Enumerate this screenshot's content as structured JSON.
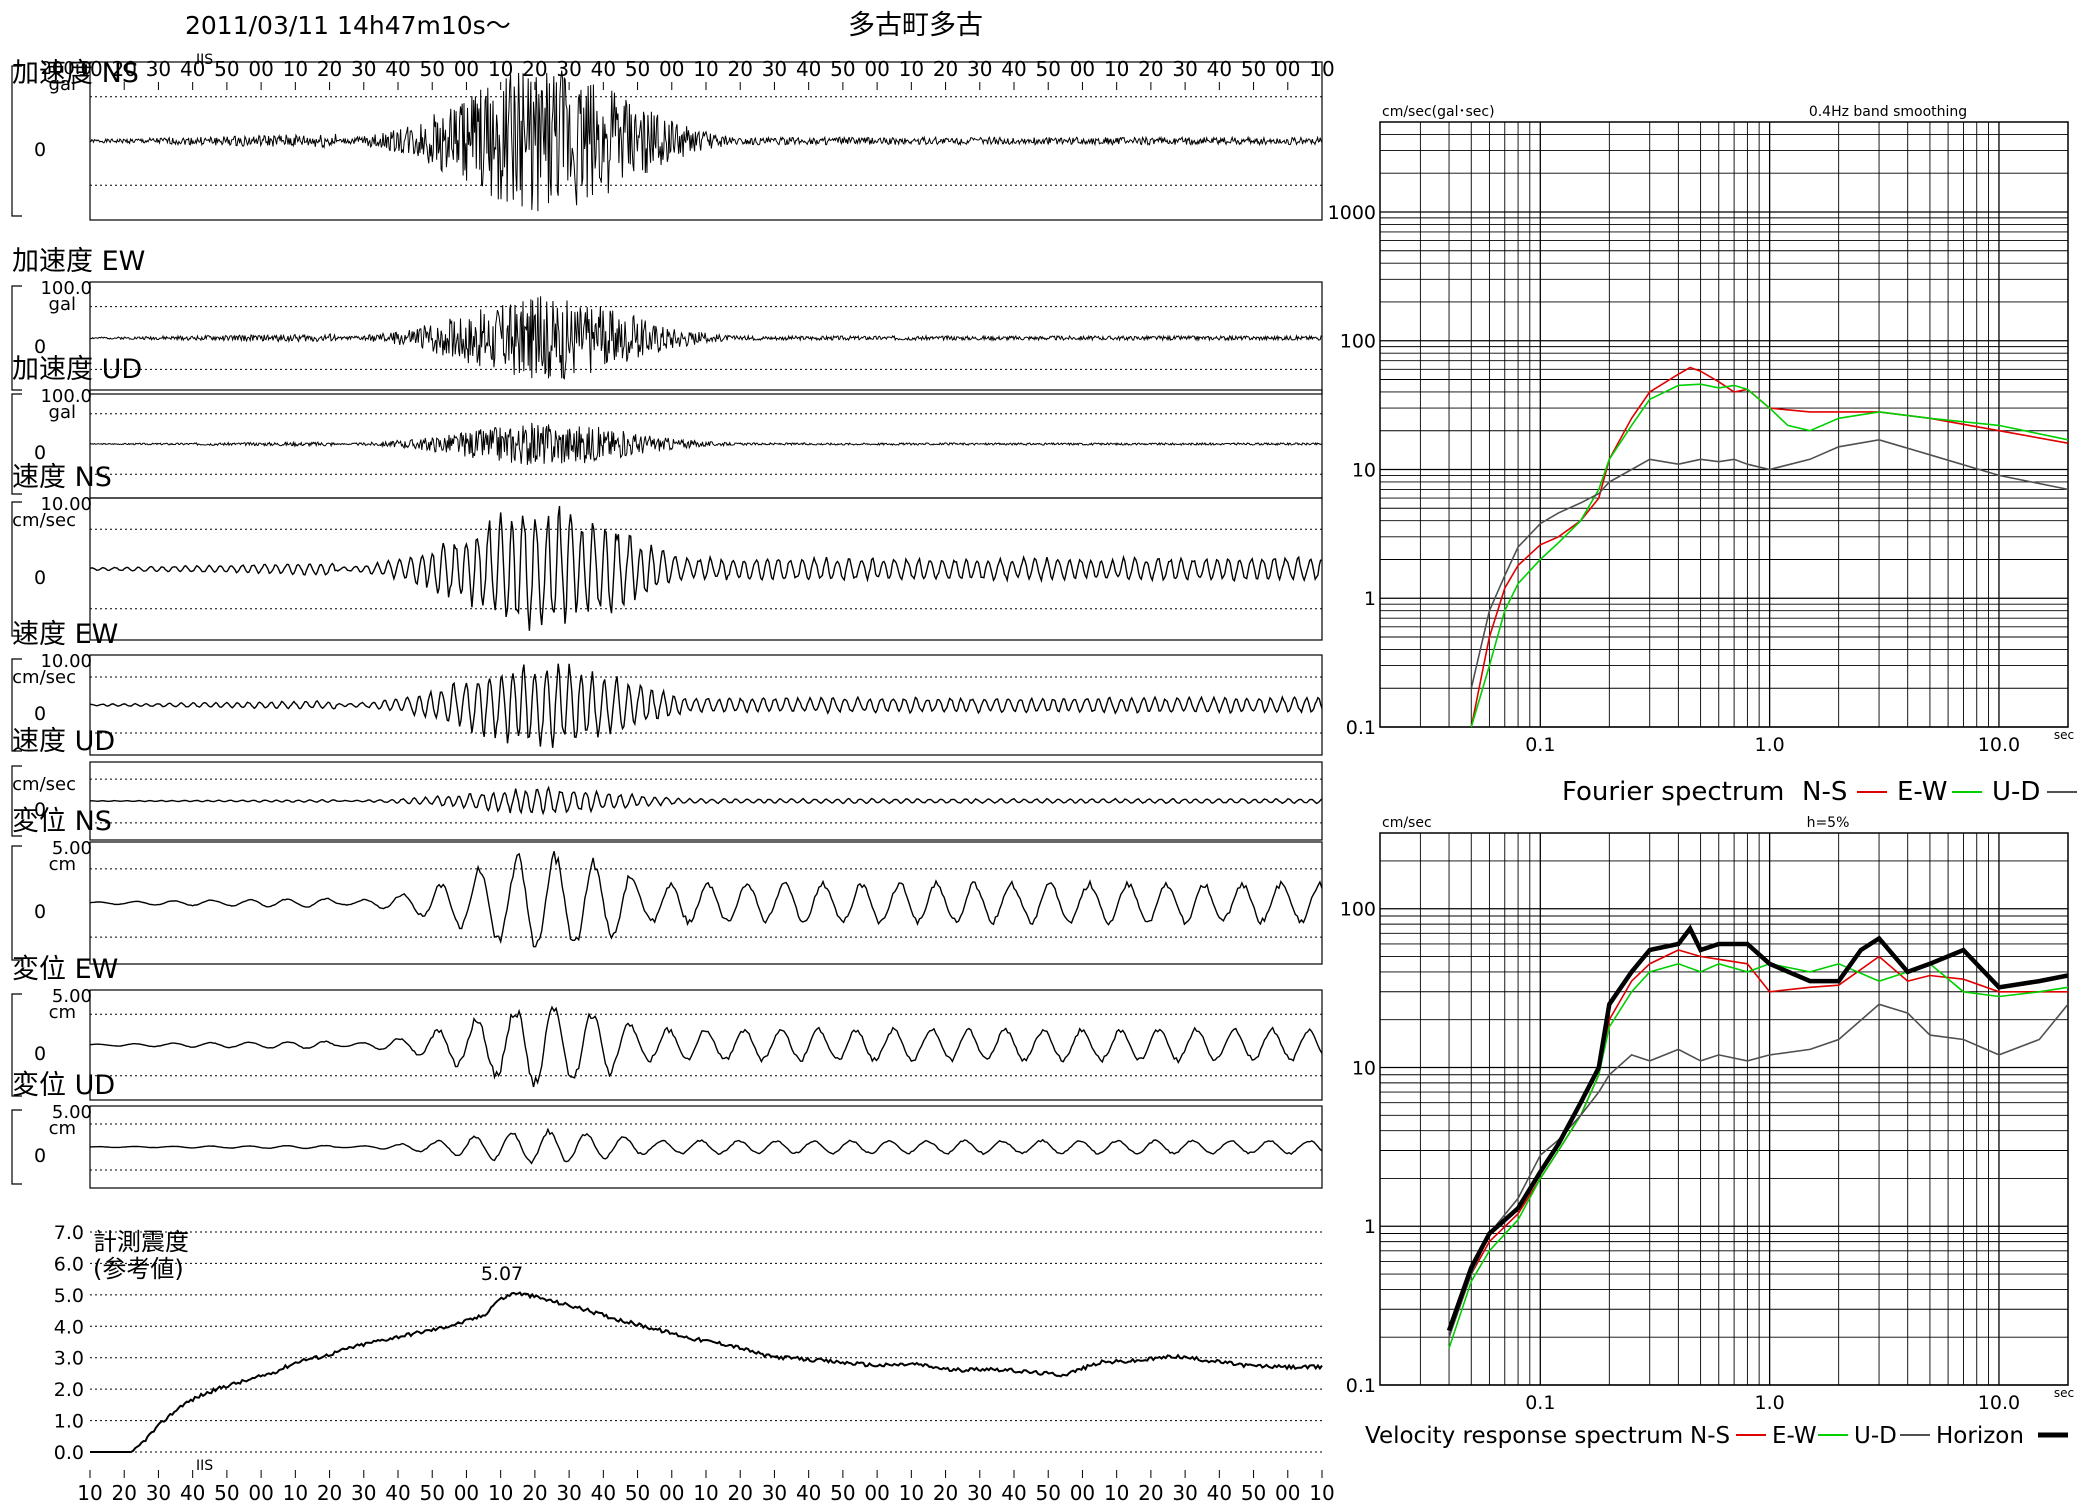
{
  "header": {
    "datetime": "2011/03/11  14h47m10s〜",
    "station": "多古町多古"
  },
  "time_ticks": [
    "10",
    "20",
    "30",
    "40",
    "50",
    "00",
    "10",
    "20",
    "30",
    "40",
    "50",
    "00",
    "10",
    "20",
    "30",
    "40",
    "50",
    "00",
    "10",
    "20",
    "30",
    "40",
    "50",
    "00",
    "10",
    "20",
    "30",
    "40",
    "50",
    "00",
    "10",
    "20",
    "30",
    "40",
    "50",
    "00",
    "10"
  ],
  "trace_marker": "IIS",
  "waveforms": [
    {
      "label": "加速度 NS",
      "scale": "200.0",
      "unit": "gal",
      "zero": "0",
      "amp": 0.95,
      "type": "acc",
      "seed": 1
    },
    {
      "label": "加速度 EW",
      "scale": "100.0",
      "unit": "gal",
      "zero": "0",
      "amp": 0.75,
      "type": "acc",
      "seed": 2
    },
    {
      "label": "加速度 UD",
      "scale": "100.0",
      "unit": "gal",
      "zero": "0",
      "amp": 0.4,
      "type": "acc",
      "seed": 3
    },
    {
      "label": "速度 NS",
      "scale": "10.00",
      "unit": "cm/sec",
      "zero": "0",
      "amp": 0.95,
      "type": "vel",
      "seed": 4
    },
    {
      "label": "速度 EW",
      "scale": "10.00",
      "unit": "cm/sec",
      "zero": "0",
      "amp": 0.9,
      "type": "vel",
      "seed": 5
    },
    {
      "label": "速度 UD",
      "scale": "",
      "unit": "cm/sec",
      "zero": "0",
      "amp": 0.35,
      "type": "vel",
      "seed": 6
    },
    {
      "label": "変位 NS",
      "scale": "5.00",
      "unit": "cm",
      "zero": "0",
      "amp": 0.9,
      "type": "disp",
      "seed": 7
    },
    {
      "label": "変位 EW",
      "scale": "5.00",
      "unit": "cm",
      "zero": "0",
      "amp": 0.8,
      "type": "disp",
      "seed": 8
    },
    {
      "label": "変位 UD",
      "scale": "5.00",
      "unit": "cm",
      "zero": "0",
      "amp": 0.45,
      "type": "disp",
      "seed": 9
    }
  ],
  "intensity": {
    "label1": "計測震度",
    "label2": "(参考値)",
    "peak_label": "5.07",
    "yticks": [
      "7.0",
      "6.0",
      "5.0",
      "4.0",
      "3.0",
      "2.0",
      "1.0",
      "0.0"
    ],
    "series": [
      [
        0,
        0
      ],
      [
        0.018,
        0
      ],
      [
        0.035,
        0
      ],
      [
        0.05,
        0.6
      ],
      [
        0.06,
        1.0
      ],
      [
        0.075,
        1.5
      ],
      [
        0.09,
        1.8
      ],
      [
        0.11,
        2.1
      ],
      [
        0.13,
        2.3
      ],
      [
        0.15,
        2.55
      ],
      [
        0.17,
        2.9
      ],
      [
        0.19,
        3.05
      ],
      [
        0.21,
        3.3
      ],
      [
        0.23,
        3.5
      ],
      [
        0.26,
        3.75
      ],
      [
        0.28,
        3.9
      ],
      [
        0.3,
        4.1
      ],
      [
        0.32,
        4.35
      ],
      [
        0.33,
        4.8
      ],
      [
        0.345,
        5.07
      ],
      [
        0.36,
        4.95
      ],
      [
        0.38,
        4.75
      ],
      [
        0.4,
        4.55
      ],
      [
        0.43,
        4.2
      ],
      [
        0.46,
        3.9
      ],
      [
        0.49,
        3.6
      ],
      [
        0.52,
        3.4
      ],
      [
        0.55,
        3.05
      ],
      [
        0.58,
        2.95
      ],
      [
        0.61,
        2.85
      ],
      [
        0.64,
        2.75
      ],
      [
        0.67,
        2.8
      ],
      [
        0.7,
        2.6
      ],
      [
        0.73,
        2.65
      ],
      [
        0.76,
        2.55
      ],
      [
        0.79,
        2.45
      ],
      [
        0.82,
        2.85
      ],
      [
        0.85,
        2.9
      ],
      [
        0.88,
        3.05
      ],
      [
        0.91,
        2.9
      ],
      [
        0.94,
        2.75
      ],
      [
        0.97,
        2.7
      ],
      [
        1.0,
        2.7
      ]
    ]
  },
  "chart_data": [
    {
      "type": "line",
      "title": "",
      "left_label": "cm/sec(gal･sec)",
      "note": "0.4Hz band smoothing",
      "x_unit": "sec",
      "xscale": "log",
      "yscale": "log",
      "xlim": [
        0.02,
        20
      ],
      "ylim": [
        0.1,
        5000
      ],
      "xticks": [
        "0.1",
        "1.0",
        "10.0"
      ],
      "yticks": [
        "1000",
        "100",
        "10",
        "1",
        "0.1"
      ],
      "legend": {
        "title": "Fourier spectrum",
        "entries": [
          "N-S",
          "E-W",
          "U-D"
        ]
      },
      "series": [
        {
          "name": "N-S",
          "color": "#e00000",
          "x": [
            0.05,
            0.06,
            0.07,
            0.08,
            0.1,
            0.12,
            0.15,
            0.18,
            0.2,
            0.25,
            0.3,
            0.4,
            0.45,
            0.5,
            0.6,
            0.7,
            0.8,
            1.0,
            1.5,
            2,
            3,
            5,
            10,
            20
          ],
          "y": [
            0.1,
            0.5,
            1.2,
            1.8,
            2.6,
            3,
            4,
            6,
            12,
            25,
            40,
            55,
            62,
            58,
            48,
            40,
            42,
            30,
            28,
            28,
            28,
            25,
            20,
            16
          ]
        },
        {
          "name": "E-W",
          "color": "#00d000",
          "x": [
            0.05,
            0.06,
            0.07,
            0.08,
            0.1,
            0.12,
            0.15,
            0.18,
            0.2,
            0.25,
            0.3,
            0.4,
            0.5,
            0.6,
            0.7,
            0.8,
            1.0,
            1.2,
            1.5,
            2,
            3,
            5,
            10,
            20
          ],
          "y": [
            0.1,
            0.3,
            0.8,
            1.3,
            2,
            2.7,
            4,
            7,
            12,
            22,
            35,
            45,
            46,
            43,
            45,
            42,
            30,
            22,
            20,
            25,
            28,
            25,
            22,
            17
          ]
        },
        {
          "name": "U-D",
          "color": "#505050",
          "x": [
            0.05,
            0.06,
            0.07,
            0.08,
            0.1,
            0.12,
            0.15,
            0.18,
            0.2,
            0.25,
            0.3,
            0.4,
            0.5,
            0.6,
            0.7,
            0.8,
            1.0,
            1.5,
            2,
            3,
            5,
            10,
            20
          ],
          "y": [
            0.2,
            0.8,
            1.5,
            2.5,
            3.8,
            4.6,
            5.5,
            6.5,
            8,
            10,
            12,
            11,
            12,
            11.5,
            12,
            11,
            10,
            12,
            15,
            17,
            13,
            9,
            7
          ]
        }
      ]
    },
    {
      "type": "line",
      "title": "",
      "left_label": "cm/sec",
      "note": "h=5%",
      "x_unit": "sec",
      "xscale": "log",
      "yscale": "log",
      "xlim": [
        0.02,
        20
      ],
      "ylim": [
        0.1,
        300
      ],
      "xticks": [
        "0.1",
        "1.0",
        "10.0"
      ],
      "yticks": [
        "100",
        "10",
        "1",
        "0.1"
      ],
      "legend": {
        "title": "Velocity response spectrum",
        "entries": [
          "N-S",
          "E-W",
          "U-D",
          "Horizon"
        ]
      },
      "series": [
        {
          "name": "N-S",
          "color": "#e00000",
          "x": [
            0.04,
            0.05,
            0.06,
            0.08,
            0.1,
            0.12,
            0.15,
            0.18,
            0.2,
            0.25,
            0.3,
            0.4,
            0.5,
            0.6,
            0.8,
            1.0,
            1.5,
            2,
            3,
            4,
            5,
            7,
            10,
            15,
            20
          ],
          "y": [
            0.2,
            0.5,
            0.8,
            1.2,
            2,
            3,
            5,
            9,
            20,
            35,
            45,
            55,
            50,
            48,
            45,
            30,
            32,
            33,
            50,
            35,
            38,
            36,
            30,
            30,
            30
          ]
        },
        {
          "name": "E-W",
          "color": "#00d000",
          "x": [
            0.04,
            0.05,
            0.06,
            0.08,
            0.1,
            0.12,
            0.15,
            0.18,
            0.2,
            0.25,
            0.3,
            0.4,
            0.5,
            0.6,
            0.8,
            1.0,
            1.5,
            2,
            3,
            4,
            5,
            7,
            10,
            15,
            20
          ],
          "y": [
            0.17,
            0.45,
            0.7,
            1.1,
            2,
            3,
            5,
            9,
            18,
            30,
            40,
            45,
            40,
            45,
            40,
            45,
            40,
            45,
            35,
            40,
            45,
            30,
            28,
            30,
            32
          ]
        },
        {
          "name": "U-D",
          "color": "#505050",
          "x": [
            0.04,
            0.05,
            0.06,
            0.08,
            0.1,
            0.12,
            0.15,
            0.18,
            0.2,
            0.25,
            0.3,
            0.4,
            0.5,
            0.6,
            0.8,
            1.0,
            1.5,
            2,
            3,
            4,
            5,
            7,
            10,
            15,
            20
          ],
          "y": [
            0.2,
            0.5,
            0.9,
            1.5,
            2.8,
            3.5,
            5,
            7,
            9,
            12,
            11,
            13,
            11,
            12,
            11,
            12,
            13,
            15,
            25,
            22,
            16,
            15,
            12,
            15,
            25
          ]
        },
        {
          "name": "Horizon",
          "color": "#000000",
          "x": [
            0.04,
            0.05,
            0.06,
            0.08,
            0.1,
            0.12,
            0.15,
            0.18,
            0.2,
            0.25,
            0.3,
            0.4,
            0.45,
            0.5,
            0.6,
            0.8,
            1.0,
            1.5,
            2,
            2.5,
            3,
            4,
            5,
            7,
            10,
            15,
            20
          ],
          "y": [
            0.22,
            0.55,
            0.9,
            1.3,
            2.2,
            3.3,
            6,
            10,
            25,
            40,
            55,
            60,
            75,
            55,
            60,
            60,
            45,
            35,
            35,
            55,
            65,
            40,
            45,
            55,
            32,
            35,
            38
          ]
        }
      ]
    }
  ]
}
